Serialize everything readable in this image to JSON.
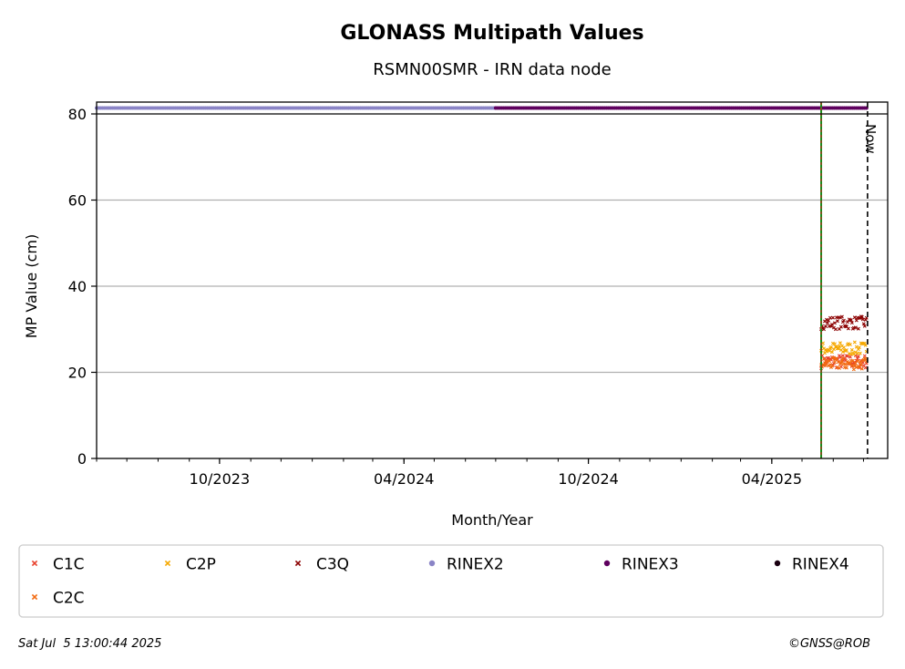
{
  "chart_data": {
    "type": "scatter",
    "title": "GLONASS Multipath Values",
    "subtitle": "RSMN00SMR - IRN data node",
    "xlabel": "Month/Year",
    "ylabel": "MP Value (cm)",
    "xlim": [
      "2023-06-01",
      "2025-07-25"
    ],
    "ylim": [
      0,
      80
    ],
    "yticks": [
      0,
      20,
      40,
      60,
      80
    ],
    "xticks": [
      {
        "date": "2023-10-01",
        "label": "10/2023"
      },
      {
        "date": "2024-04-01",
        "label": "04/2024"
      },
      {
        "date": "2024-10-01",
        "label": "10/2024"
      },
      {
        "date": "2025-04-01",
        "label": "04/2025"
      }
    ],
    "grid": "horizontal",
    "now_label": "Now",
    "now_date": "2025-07-05",
    "change_date": "2025-05-20",
    "series": [
      {
        "name": "C1C",
        "color": "#e8412c",
        "marker": "x",
        "start": "2025-05-20",
        "end": "2025-07-04",
        "mean": 22.5,
        "spread": 1.6
      },
      {
        "name": "C2P",
        "color": "#f5a800",
        "marker": "x",
        "start": "2025-05-20",
        "end": "2025-07-04",
        "mean": 25.5,
        "spread": 1.5
      },
      {
        "name": "C3Q",
        "color": "#8b0000",
        "marker": "x",
        "start": "2025-05-20",
        "end": "2025-07-04",
        "mean": 31.5,
        "spread": 1.5
      },
      {
        "name": "C2C",
        "color": "#f26a10",
        "marker": "x",
        "start": "2025-05-20",
        "end": "2025-07-04",
        "mean": 22.0,
        "spread": 1.4
      }
    ],
    "availability": [
      {
        "name": "RINEX2",
        "color": "#8a84c6",
        "start": "2023-06-01",
        "end": "2024-07-01"
      },
      {
        "name": "RINEX3",
        "color": "#5e005e",
        "start": "2024-07-01",
        "end": "2025-07-04"
      },
      {
        "name": "RINEX4",
        "color": "#1a0010",
        "start": null,
        "end": null
      }
    ],
    "legend": {
      "placement": "bottom",
      "items": [
        {
          "label": "C1C",
          "color": "#e8412c",
          "marker": "x"
        },
        {
          "label": "C2P",
          "color": "#f5a800",
          "marker": "x"
        },
        {
          "label": "C3Q",
          "color": "#8b0000",
          "marker": "x"
        },
        {
          "label": "RINEX2",
          "color": "#8a84c6",
          "marker": "dot"
        },
        {
          "label": "RINEX3",
          "color": "#5e005e",
          "marker": "dot"
        },
        {
          "label": "RINEX4",
          "color": "#1a0010",
          "marker": "dot"
        },
        {
          "label": "C2C",
          "color": "#f26a10",
          "marker": "x"
        }
      ]
    }
  },
  "footer": {
    "timestamp": "Sat Jul  5 13:00:44 2025",
    "credit": "©GNSS@ROB"
  }
}
